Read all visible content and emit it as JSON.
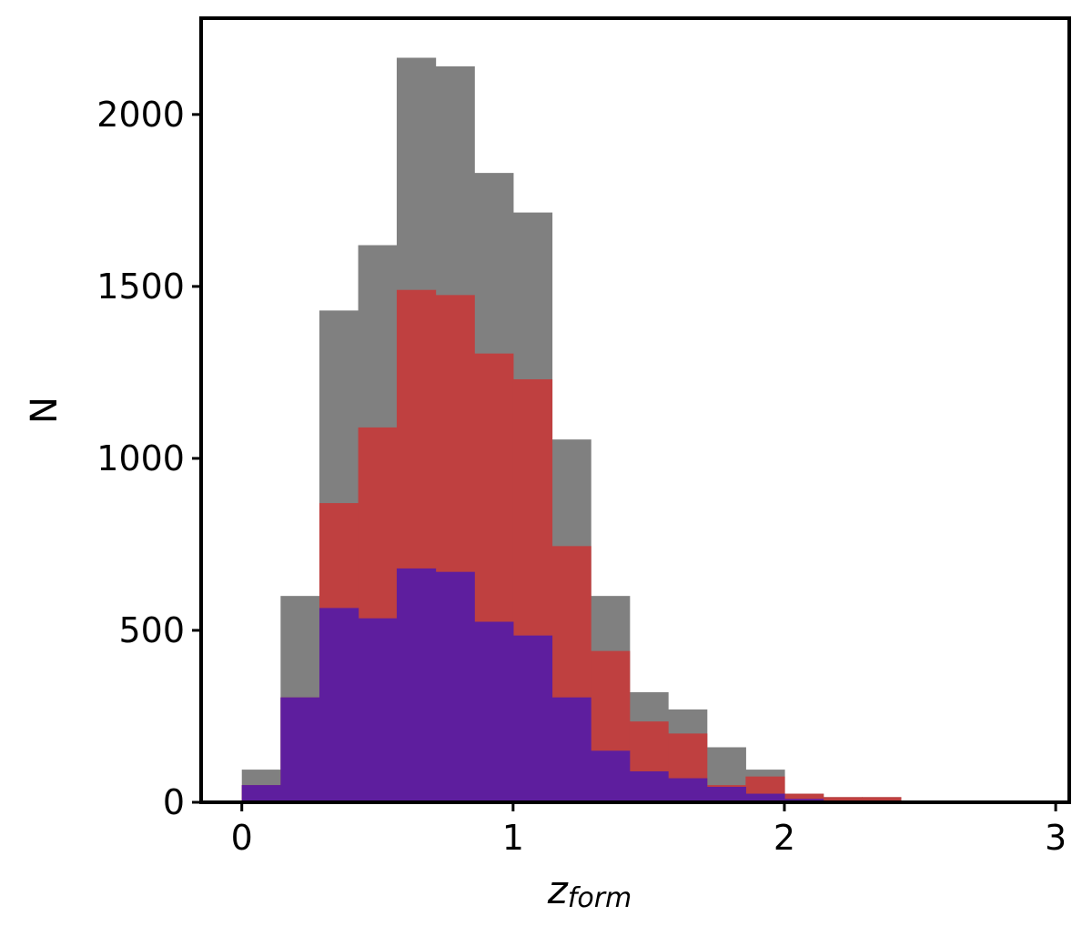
{
  "chart_data": {
    "type": "bar",
    "title": "",
    "xlabel": "z",
    "xlabel_subscript": "form",
    "ylabel": "N",
    "xlim": [
      -0.15,
      3.05
    ],
    "ylim": [
      0,
      2280
    ],
    "grid": false,
    "x_ticks": [
      0,
      1,
      2,
      3
    ],
    "x_tick_labels": [
      "0",
      "1",
      "2",
      "3"
    ],
    "y_ticks": [
      0,
      500,
      1000,
      1500,
      2000
    ],
    "y_tick_labels": [
      "0",
      "500",
      "1000",
      "1500",
      "2000"
    ],
    "bin_edges": [
      0.0,
      0.143,
      0.286,
      0.429,
      0.571,
      0.714,
      0.857,
      1.0,
      1.143,
      1.286,
      1.429,
      1.571,
      1.714,
      1.857,
      2.0,
      2.143,
      2.286,
      2.429
    ],
    "series": [
      {
        "color": "#808080",
        "values": [
          95,
          600,
          1430,
          1620,
          2165,
          2140,
          1830,
          1715,
          1055,
          600,
          320,
          270,
          160,
          95,
          25,
          15,
          15
        ]
      },
      {
        "color": "#bf4040",
        "values": [
          50,
          305,
          870,
          1090,
          1490,
          1475,
          1305,
          1230,
          745,
          440,
          235,
          200,
          50,
          75,
          25,
          15,
          15
        ]
      },
      {
        "color": "#5e1e9e",
        "values": [
          50,
          305,
          565,
          535,
          680,
          670,
          525,
          485,
          305,
          150,
          90,
          70,
          45,
          25,
          10,
          5,
          5
        ]
      }
    ]
  }
}
